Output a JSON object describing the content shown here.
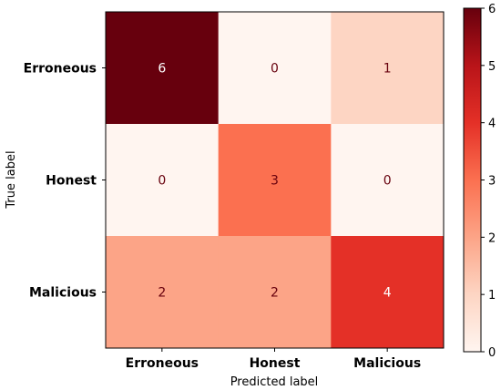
{
  "chart_data": {
    "type": "heatmap",
    "title": "",
    "xlabel": "Predicted label",
    "ylabel": "True label",
    "x_categories": [
      "Erroneous",
      "Honest",
      "Malicious"
    ],
    "y_categories": [
      "Erroneous",
      "Honest",
      "Malicious"
    ],
    "matrix": [
      [
        6,
        0,
        1
      ],
      [
        0,
        3,
        0
      ],
      [
        2,
        2,
        4
      ]
    ],
    "colormap": "Reds",
    "colorbar": {
      "min": 0,
      "max": 6,
      "ticks": [
        0,
        1,
        2,
        3,
        4,
        5,
        6
      ],
      "placement": "right"
    },
    "grid": false
  }
}
